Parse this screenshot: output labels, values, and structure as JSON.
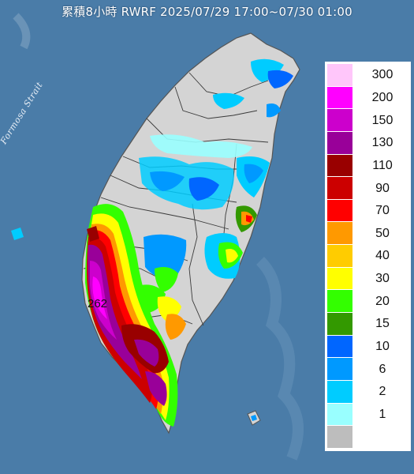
{
  "header": {
    "title": "累積8小時 RWRF 2025/07/29 17:00~07/30 01:00"
  },
  "map": {
    "strait_label": "Formosa Strait",
    "peak_value": "262",
    "colors": {
      "sea": "#4a7ca8",
      "land": "#d3d3d3",
      "border": "#333333"
    }
  },
  "legend": {
    "items": [
      {
        "label": "300",
        "color": "#ffc6fa"
      },
      {
        "label": "200",
        "color": "#ff00ff"
      },
      {
        "label": "150",
        "color": "#cc00cc"
      },
      {
        "label": "130",
        "color": "#990099"
      },
      {
        "label": "110",
        "color": "#990000"
      },
      {
        "label": "90",
        "color": "#cc0000"
      },
      {
        "label": "70",
        "color": "#ff0000"
      },
      {
        "label": "50",
        "color": "#ff9900"
      },
      {
        "label": "40",
        "color": "#ffcc00"
      },
      {
        "label": "30",
        "color": "#ffff00"
      },
      {
        "label": "20",
        "color": "#33ff00"
      },
      {
        "label": "15",
        "color": "#339900"
      },
      {
        "label": "10",
        "color": "#0066ff"
      },
      {
        "label": "6",
        "color": "#0099ff"
      },
      {
        "label": "2",
        "color": "#00ccff"
      },
      {
        "label": "1",
        "color": "#99ffff"
      },
      {
        "label": "",
        "color": "#bdbdbd"
      }
    ]
  }
}
